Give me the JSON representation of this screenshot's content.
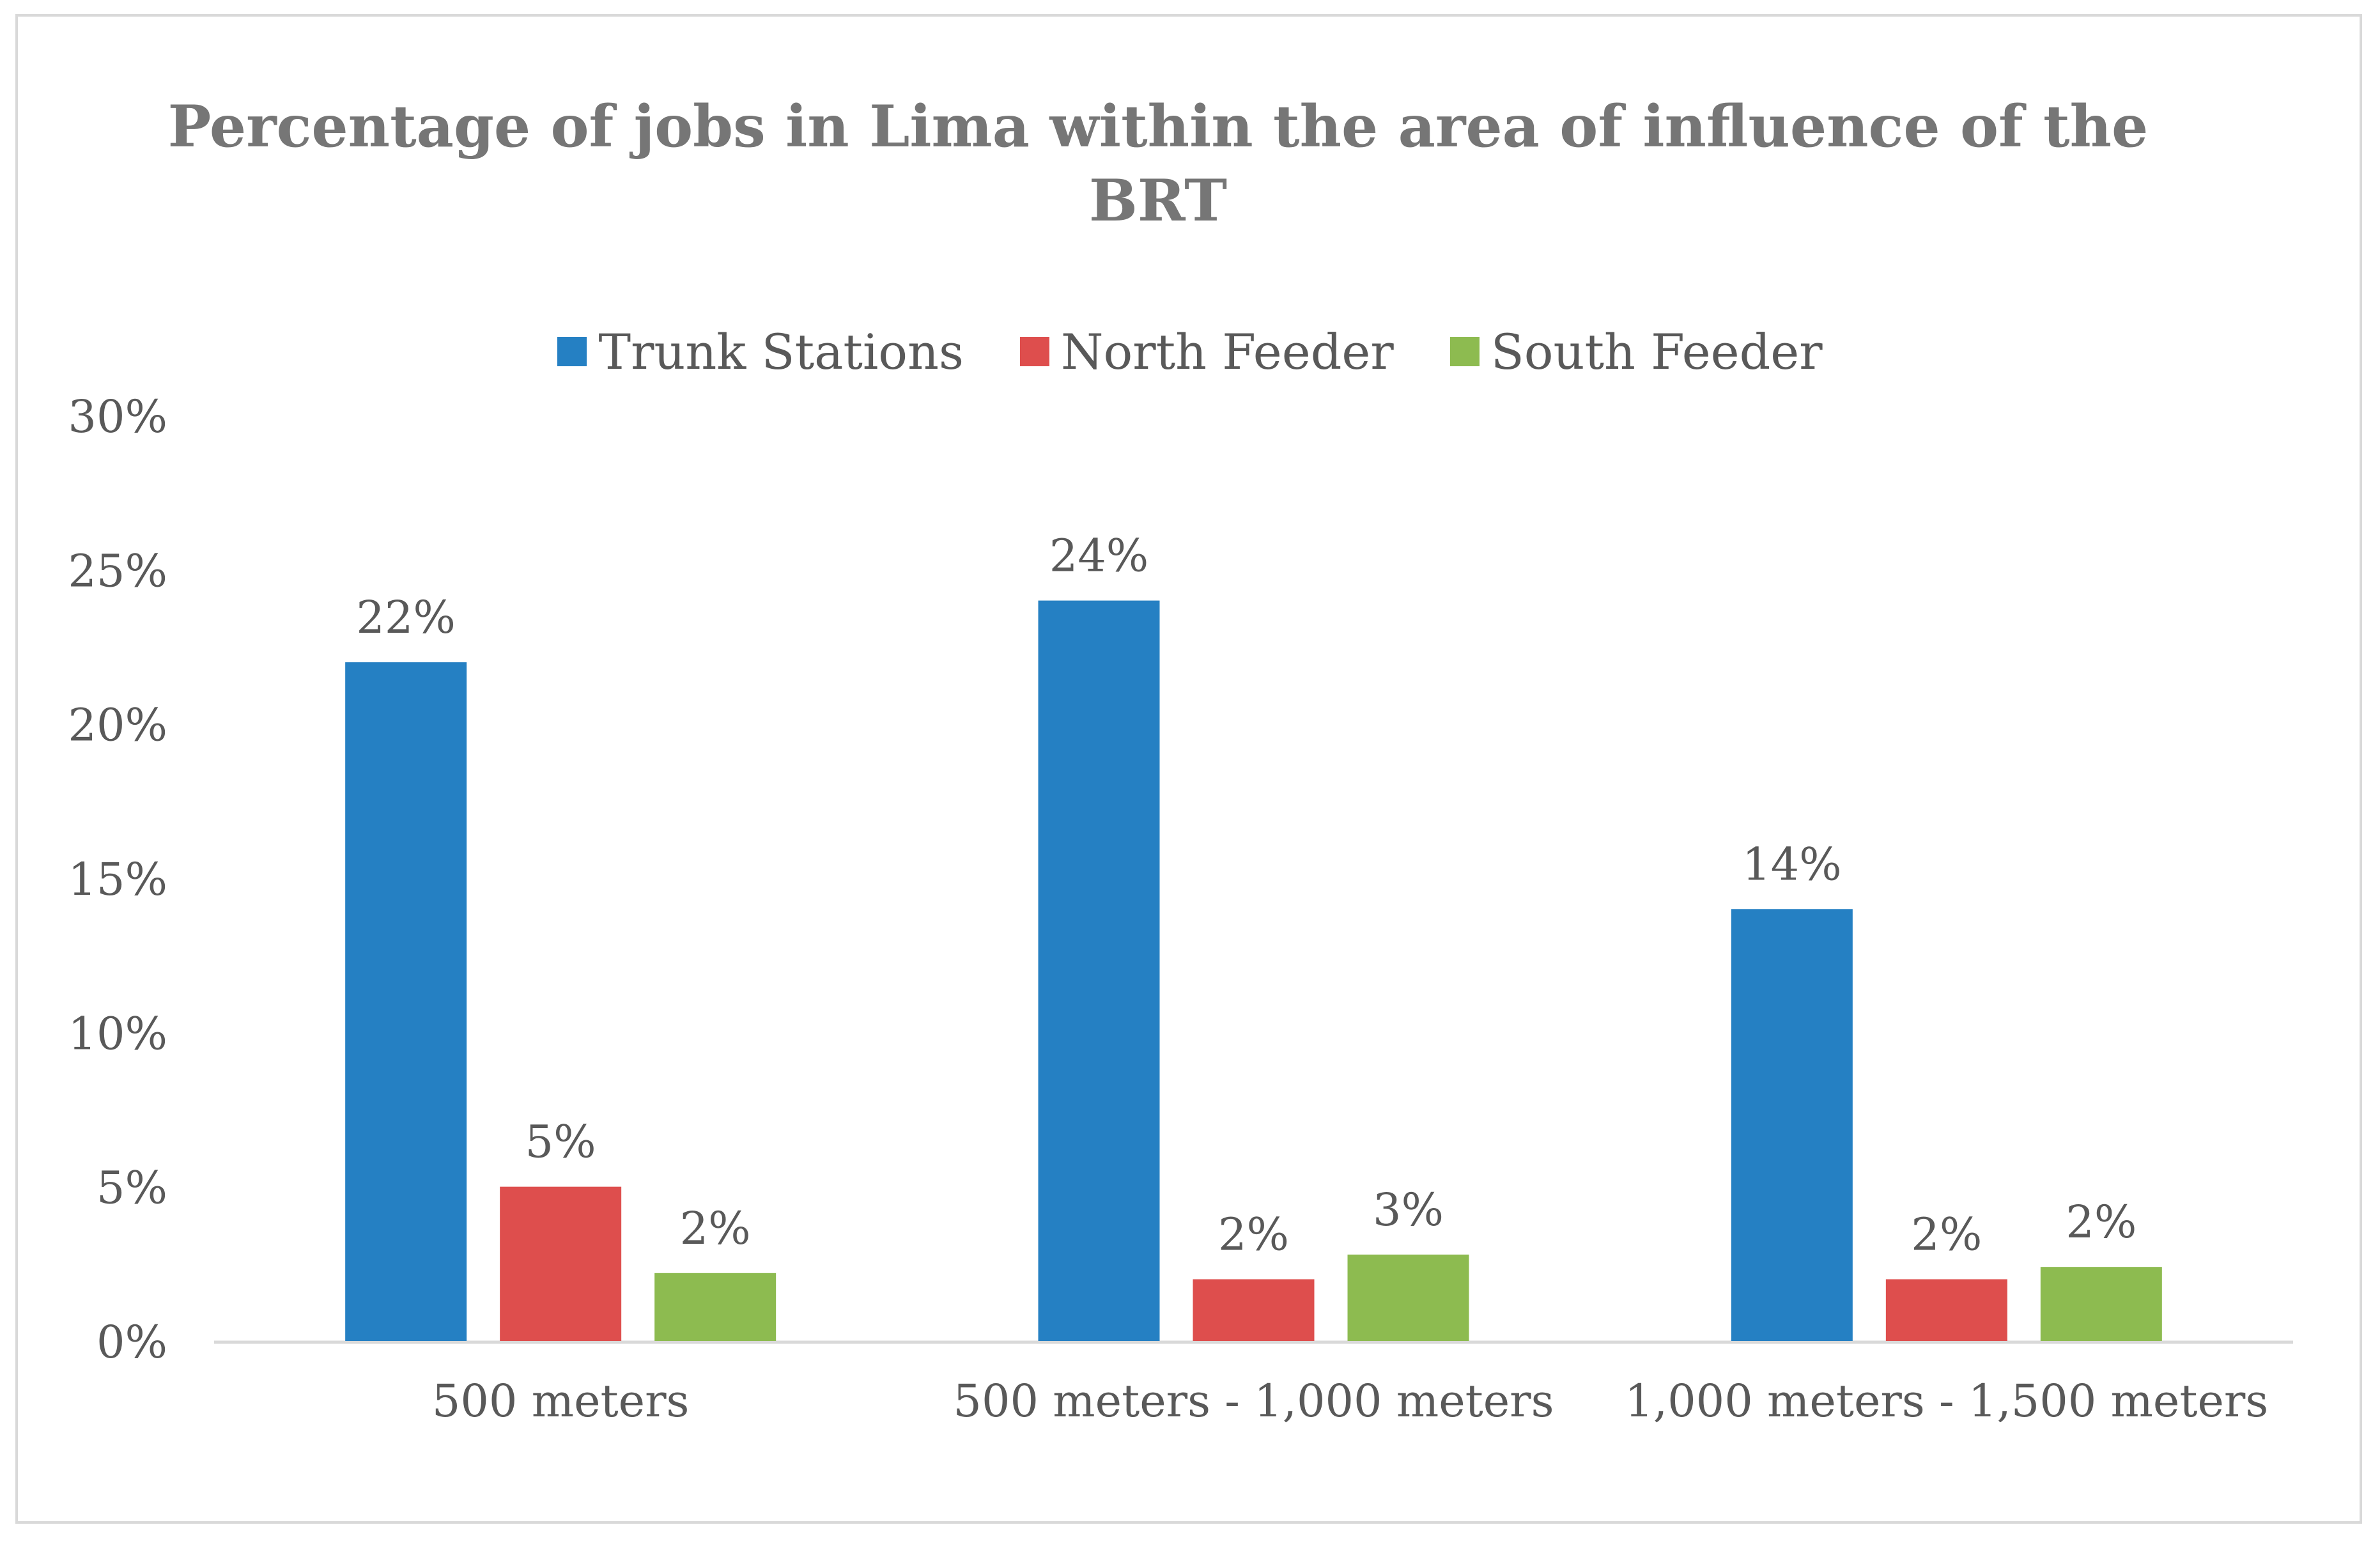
{
  "chart_data": {
    "type": "bar",
    "title": "Percentage of jobs in Lima within the area of influence of the BRT",
    "categories": [
      "500 meters",
      "500 meters - 1,000 meters",
      "1,000 meters - 1,500 meters"
    ],
    "series": [
      {
        "name": "Trunk Stations",
        "color": "#2580C3",
        "values": [
          22,
          24,
          14
        ],
        "labels": [
          "22%",
          "24%",
          "14%"
        ]
      },
      {
        "name": "North Feeder",
        "color": "#DE4E4D",
        "values": [
          5,
          2,
          2
        ],
        "labels": [
          "5%",
          "2%",
          "2%"
        ]
      },
      {
        "name": "South Feeder",
        "color": "#8DBB50",
        "values": [
          2.2,
          2.8,
          2.4
        ],
        "labels": [
          "2%",
          "3%",
          "2%"
        ]
      }
    ],
    "yticks": [
      "0%",
      "5%",
      "10%",
      "15%",
      "20%",
      "25%",
      "30%"
    ],
    "ylim": [
      0,
      30
    ],
    "xlabel": "",
    "ylabel": "",
    "grid": false,
    "legend_position": "top"
  }
}
